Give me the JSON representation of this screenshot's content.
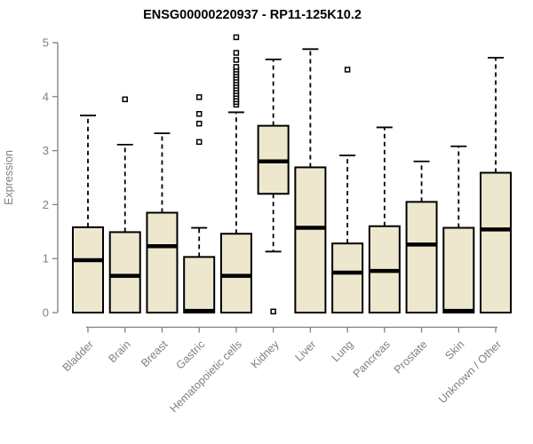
{
  "title": "ENSG00000220937 - RP11-125K10.2",
  "colors": {
    "background": "#ffffff",
    "box_fill": "#EDE8CD",
    "box_stroke": "#000000",
    "median_stroke": "#000000",
    "whisker_stroke": "#000000",
    "outlier_stroke": "#000000",
    "axis_color": "#7f7f7f",
    "title_color": "#000000"
  },
  "chart_data": {
    "type": "boxplot",
    "title": "ENSG00000220937 - RP11-125K10.2",
    "xlabel": "",
    "ylabel": "Expression",
    "ylim": [
      0,
      5
    ],
    "yticks": [
      "0",
      "1",
      "2",
      "3",
      "4",
      "5"
    ],
    "grid": false,
    "legend": false,
    "categories": [
      "Bladder",
      "Brain",
      "Breast",
      "Gastric",
      "Hematopoietic cells",
      "Kidney",
      "Liver",
      "Lung",
      "Pancreas",
      "Prostate",
      "Skin",
      "Unknown / Other"
    ],
    "series": [
      {
        "name": "Bladder",
        "whisker_low": 0,
        "q1": 0,
        "median": 0.97,
        "q3": 1.58,
        "whisker_high": 3.65,
        "outliers": []
      },
      {
        "name": "Brain",
        "whisker_low": 0,
        "q1": 0,
        "median": 0.68,
        "q3": 1.49,
        "whisker_high": 3.11,
        "outliers": [
          3.95
        ]
      },
      {
        "name": "Breast",
        "whisker_low": 0,
        "q1": 0,
        "median": 1.23,
        "q3": 1.85,
        "whisker_high": 3.32,
        "outliers": []
      },
      {
        "name": "Gastric",
        "whisker_low": 0,
        "q1": 0,
        "median": 0.03,
        "q3": 1.03,
        "whisker_high": 1.57,
        "outliers": [
          3.16,
          3.5,
          3.68,
          3.99
        ]
      },
      {
        "name": "Hematopoietic cells",
        "whisker_low": 0,
        "q1": 0,
        "median": 0.68,
        "q3": 1.46,
        "whisker_high": 3.71,
        "outliers": [
          3.85,
          3.9,
          3.95,
          4.0,
          4.05,
          4.1,
          4.15,
          4.2,
          4.25,
          4.3,
          4.35,
          4.4,
          4.45,
          4.5,
          4.55,
          4.68,
          4.81,
          5.1
        ]
      },
      {
        "name": "Kidney",
        "whisker_low": 1.13,
        "q1": 2.2,
        "median": 2.8,
        "q3": 3.46,
        "whisker_high": 4.69,
        "outliers": [
          0.02
        ]
      },
      {
        "name": "Liver",
        "whisker_low": 0,
        "q1": 0,
        "median": 1.57,
        "q3": 2.69,
        "whisker_high": 4.88,
        "outliers": []
      },
      {
        "name": "Lung",
        "whisker_low": 0,
        "q1": 0,
        "median": 0.74,
        "q3": 1.28,
        "whisker_high": 2.91,
        "outliers": [
          4.5
        ]
      },
      {
        "name": "Pancreas",
        "whisker_low": 0,
        "q1": 0,
        "median": 0.77,
        "q3": 1.6,
        "whisker_high": 3.43,
        "outliers": []
      },
      {
        "name": "Prostate",
        "whisker_low": 0,
        "q1": 0,
        "median": 1.26,
        "q3": 2.05,
        "whisker_high": 2.8,
        "outliers": []
      },
      {
        "name": "Skin",
        "whisker_low": 0,
        "q1": 0,
        "median": 0.03,
        "q3": 1.57,
        "whisker_high": 3.08,
        "outliers": []
      },
      {
        "name": "Unknown / Other",
        "whisker_low": 0,
        "q1": 0,
        "median": 1.54,
        "q3": 2.59,
        "whisker_high": 4.72,
        "outliers": []
      }
    ]
  }
}
